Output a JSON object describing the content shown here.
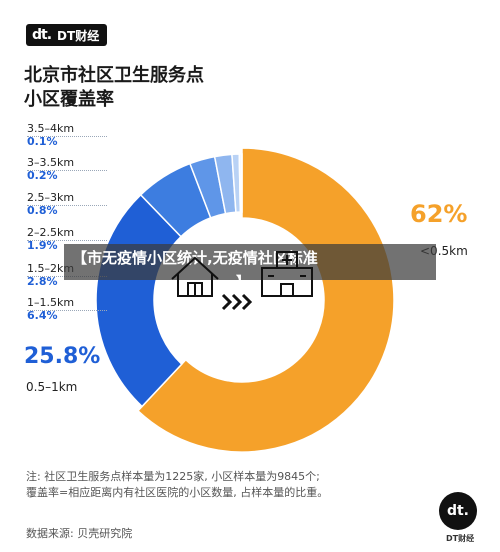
{
  "brand": {
    "logo_mark": "dt.",
    "logo_text": "DT财经",
    "badge_mark": "dt.",
    "badge_text": "DT财经"
  },
  "title_line1": "北京市社区卫生服务点",
  "title_line2": "小区覆盖率",
  "chart_data": {
    "type": "pie",
    "categories": [
      "<0.5km",
      "0.5–1km",
      "1–1.5km",
      "1.5–2km",
      "2–2.5km",
      "2.5–3km",
      "3–3.5km",
      "3.5–4km"
    ],
    "values": [
      62,
      25.8,
      6.4,
      2.8,
      1.9,
      0.8,
      0.2,
      0.1
    ],
    "value_labels": [
      "62%",
      "25.8%",
      "6.4%",
      "2.8%",
      "1.9%",
      "0.8%",
      "0.2%",
      "0.1%"
    ],
    "colors": [
      "#f5a12a",
      "#1f5fd6",
      "#3d7de0",
      "#5f96e8",
      "#8fb6ef",
      "#b9d2f5",
      "#d9e6f9",
      "#eef3fb"
    ]
  },
  "note_line1": "注: 社区卫生服务点样本量为1225家, 小区样本量为9845个;",
  "note_line2": "覆盖率=相应距离内有社区医院的小区数量, 占样本量的比重。",
  "source": "数据来源: 贝壳研究院",
  "overlay_caption_line1": "【市无疫情小区统计,无疫情社区标准",
  "overlay_caption_line2": "】",
  "icons": {
    "left": "house-icon",
    "middle": "arrows-icon",
    "right": "hospital-icon"
  }
}
